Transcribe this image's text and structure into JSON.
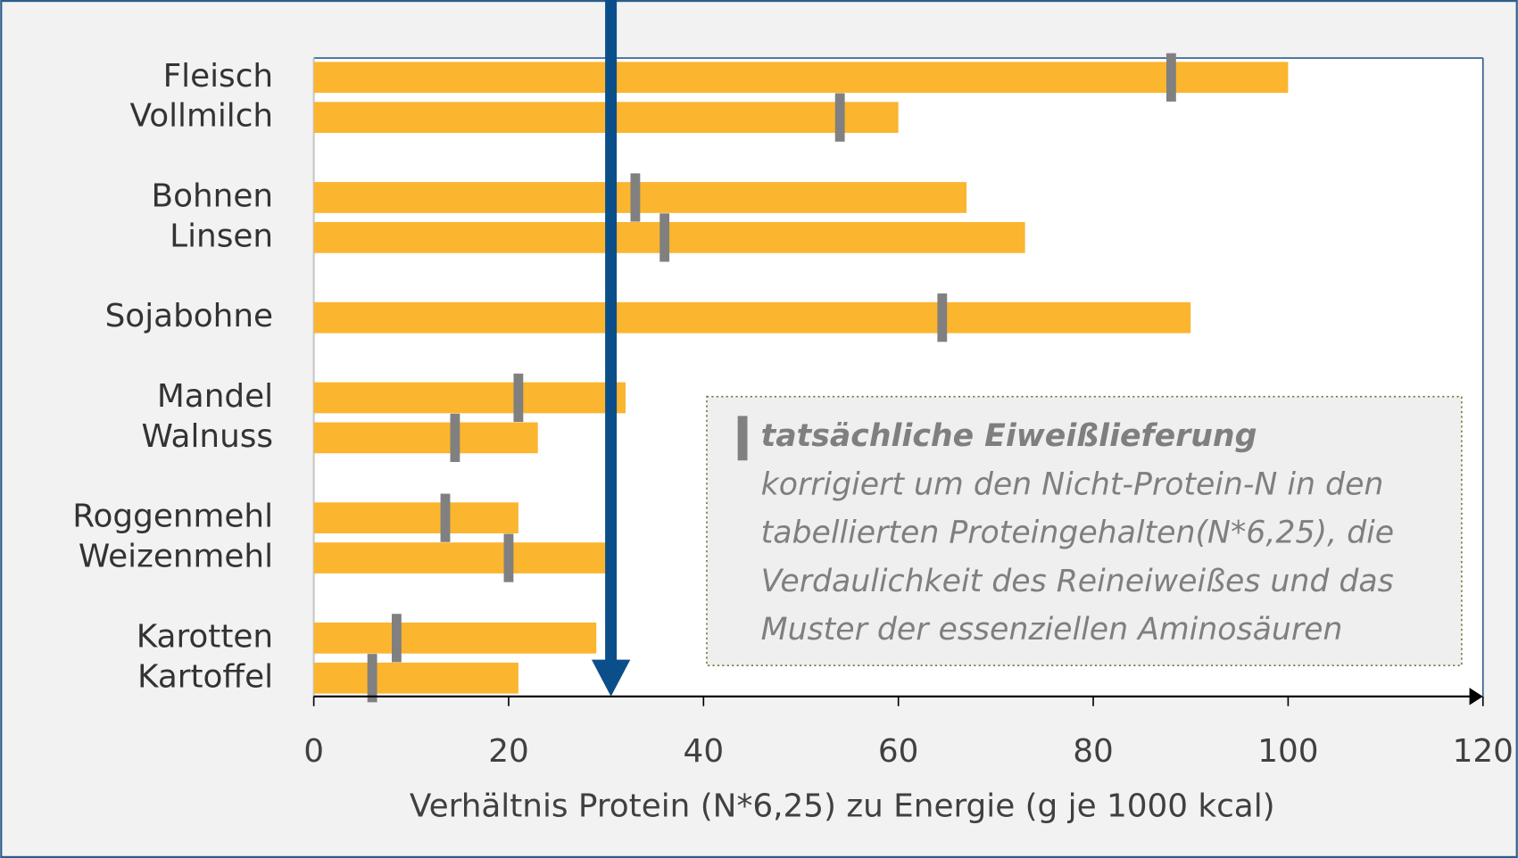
{
  "chart_data": {
    "type": "bar",
    "orientation": "horizontal",
    "categories": [
      "Fleisch",
      "Vollmilch",
      "Bohnen",
      "Linsen",
      "Sojabohne",
      "Mandel",
      "Walnuss",
      "Roggenmehl",
      "Weizenmehl",
      "Karotten",
      "Kartoffel"
    ],
    "values": [
      100,
      60,
      67,
      73,
      90,
      32,
      23,
      21,
      30,
      29,
      21
    ],
    "color": "#fbb52f",
    "markers": {
      "name": "tatsächliche Eiweißlieferung",
      "values": [
        88,
        54,
        33,
        36,
        64.5,
        21,
        14.5,
        13.5,
        20,
        8.5,
        6
      ],
      "color": "#808080"
    },
    "legend_description": [
      "korrigiert um den Nicht-Protein-N in den",
      "tabellierten Proteingehalten(N*6,25), die",
      "Verdaulichkeit des Reineiweißes und das",
      "Muster der essenziellen Aminosäuren"
    ],
    "reference_line": {
      "value": 30.5,
      "color": "#0b4f8a"
    },
    "xlabel": "Verhältnis Protein (N*6,25) zu Energie (g je 1000 kcal)",
    "xlim": [
      0,
      120
    ],
    "xticks": [
      0,
      20,
      40,
      60,
      80,
      100,
      120
    ]
  }
}
